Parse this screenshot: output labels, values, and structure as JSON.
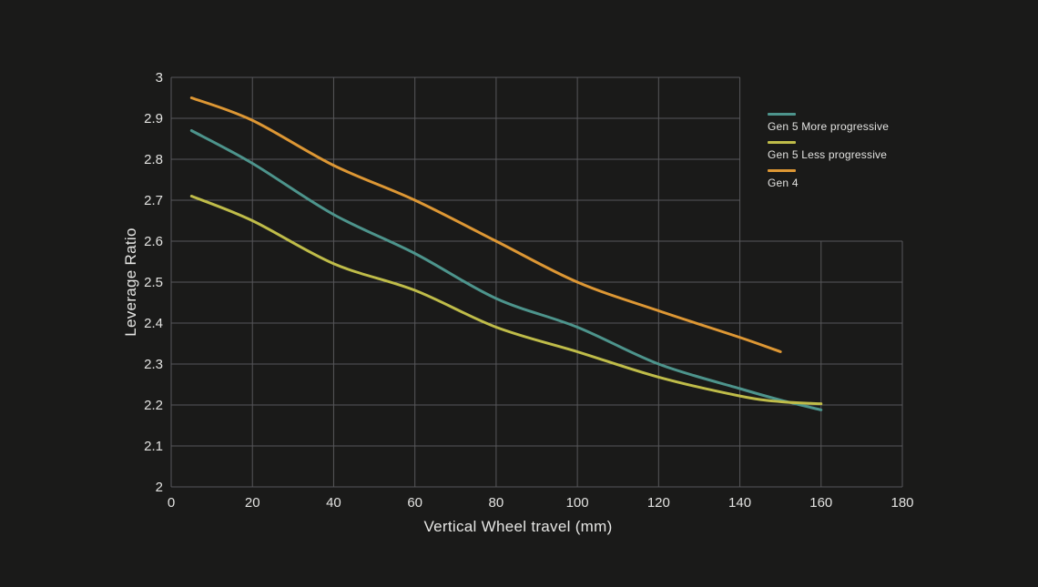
{
  "colors": {
    "background": "#1A1A19",
    "grid": "#57575A",
    "tick_text": "#E2E2E0",
    "title_text": "#E6E6E4"
  },
  "chart_data": {
    "type": "line",
    "title": "",
    "xlabel": "Vertical Wheel travel (mm)",
    "ylabel": "Leverage Ratio",
    "xlim": [
      0,
      180
    ],
    "ylim": [
      2,
      3
    ],
    "x_ticks": [
      0,
      20,
      40,
      60,
      80,
      100,
      120,
      140,
      160,
      180
    ],
    "y_ticks": [
      "3",
      "2.9",
      "2.8",
      "2.7",
      "2.6",
      "2.5",
      "2.4",
      "2.3",
      "2.2",
      "2.1",
      "2"
    ],
    "grid": true,
    "grid_cutout": {
      "note": "grid is L-shaped: no gridlines beyond x=140 for values above y=2.6 (legend occupies that corner)",
      "x_beyond": 140,
      "y_above": 2.6
    },
    "legend_position": "upper-right-in-cutout",
    "series": [
      {
        "name": "Gen 5 More progressive",
        "color": "#4D948C",
        "points": [
          [
            5,
            2.87
          ],
          [
            20,
            2.79
          ],
          [
            40,
            2.665
          ],
          [
            60,
            2.57
          ],
          [
            80,
            2.46
          ],
          [
            100,
            2.39
          ],
          [
            120,
            2.3
          ],
          [
            140,
            2.24
          ],
          [
            150,
            2.212
          ],
          [
            160,
            2.188
          ]
        ]
      },
      {
        "name": "Gen 5 Less progressive",
        "color": "#BFBC49",
        "points": [
          [
            5,
            2.71
          ],
          [
            20,
            2.65
          ],
          [
            40,
            2.545
          ],
          [
            60,
            2.48
          ],
          [
            80,
            2.39
          ],
          [
            100,
            2.33
          ],
          [
            120,
            2.268
          ],
          [
            140,
            2.222
          ],
          [
            150,
            2.208
          ],
          [
            160,
            2.203
          ]
        ]
      },
      {
        "name": "Gen 4",
        "color": "#DD9734",
        "points": [
          [
            5,
            2.95
          ],
          [
            20,
            2.895
          ],
          [
            40,
            2.785
          ],
          [
            60,
            2.7
          ],
          [
            80,
            2.6
          ],
          [
            100,
            2.5
          ],
          [
            120,
            2.43
          ],
          [
            140,
            2.365
          ],
          [
            150,
            2.33
          ]
        ]
      }
    ]
  }
}
